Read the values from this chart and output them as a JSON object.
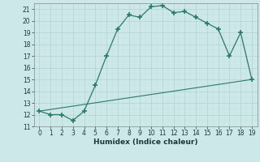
{
  "xlabel": "Humidex (Indice chaleur)",
  "line1_x": [
    0,
    1,
    2,
    3,
    4,
    5,
    6,
    7,
    8,
    9,
    10,
    11,
    12,
    13,
    14,
    15,
    16,
    17,
    18,
    19
  ],
  "line1_y": [
    12.3,
    12.0,
    12.0,
    11.5,
    12.3,
    14.5,
    17.0,
    19.3,
    20.5,
    20.3,
    21.2,
    21.3,
    20.7,
    20.8,
    20.3,
    19.8,
    19.3,
    17.0,
    19.0,
    15.0
  ],
  "line2_x": [
    0,
    19
  ],
  "line2_y": [
    12.3,
    15.0
  ],
  "line_color": "#2a7a6a",
  "bg_color": "#cde8e8",
  "grid_major_color": "#b8d4d4",
  "grid_minor_color": "#c8e0e0",
  "xlim": [
    -0.5,
    19.5
  ],
  "ylim": [
    11,
    21.5
  ],
  "yticks": [
    11,
    12,
    13,
    14,
    15,
    16,
    17,
    18,
    19,
    20,
    21
  ],
  "xticks": [
    0,
    1,
    2,
    3,
    4,
    5,
    6,
    7,
    8,
    9,
    10,
    11,
    12,
    13,
    14,
    15,
    16,
    17,
    18,
    19
  ],
  "tick_fontsize": 5.5,
  "label_fontsize": 6.5
}
